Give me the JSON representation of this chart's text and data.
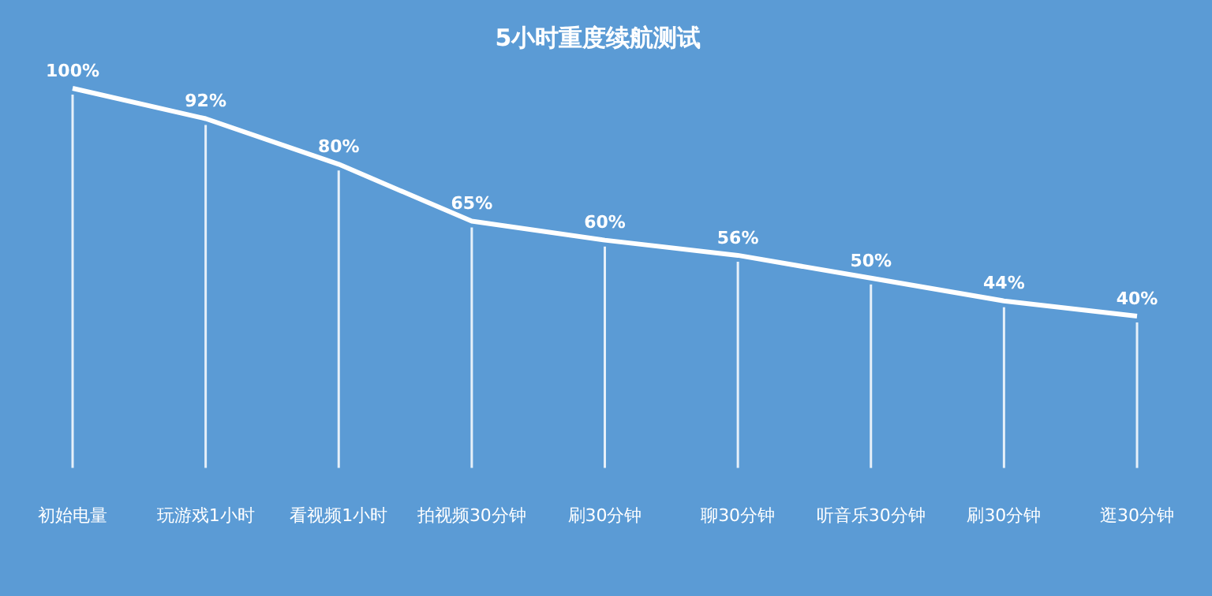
{
  "chart_data": {
    "type": "line",
    "title": "5小时重度续航测试",
    "categories": [
      "初始电量",
      "玩游戏1小时",
      "看视频1小时",
      "拍视频30分钟",
      "刷30分钟",
      "聊30分钟",
      "听音乐30分钟",
      "刷30分钟",
      "逛30分钟"
    ],
    "series": [
      {
        "color": "#ffffff",
        "values": [
          100,
          92,
          80,
          65,
          60,
          56,
          50,
          44,
          40
        ],
        "value_labels": [
          "100%",
          "92%",
          "80%",
          "65%",
          "60%",
          "56%",
          "50%",
          "44%",
          "40%"
        ]
      }
    ],
    "grid": "x",
    "legend": false,
    "marker": "none",
    "line_style": "solid",
    "tick_labels": "x"
  }
}
